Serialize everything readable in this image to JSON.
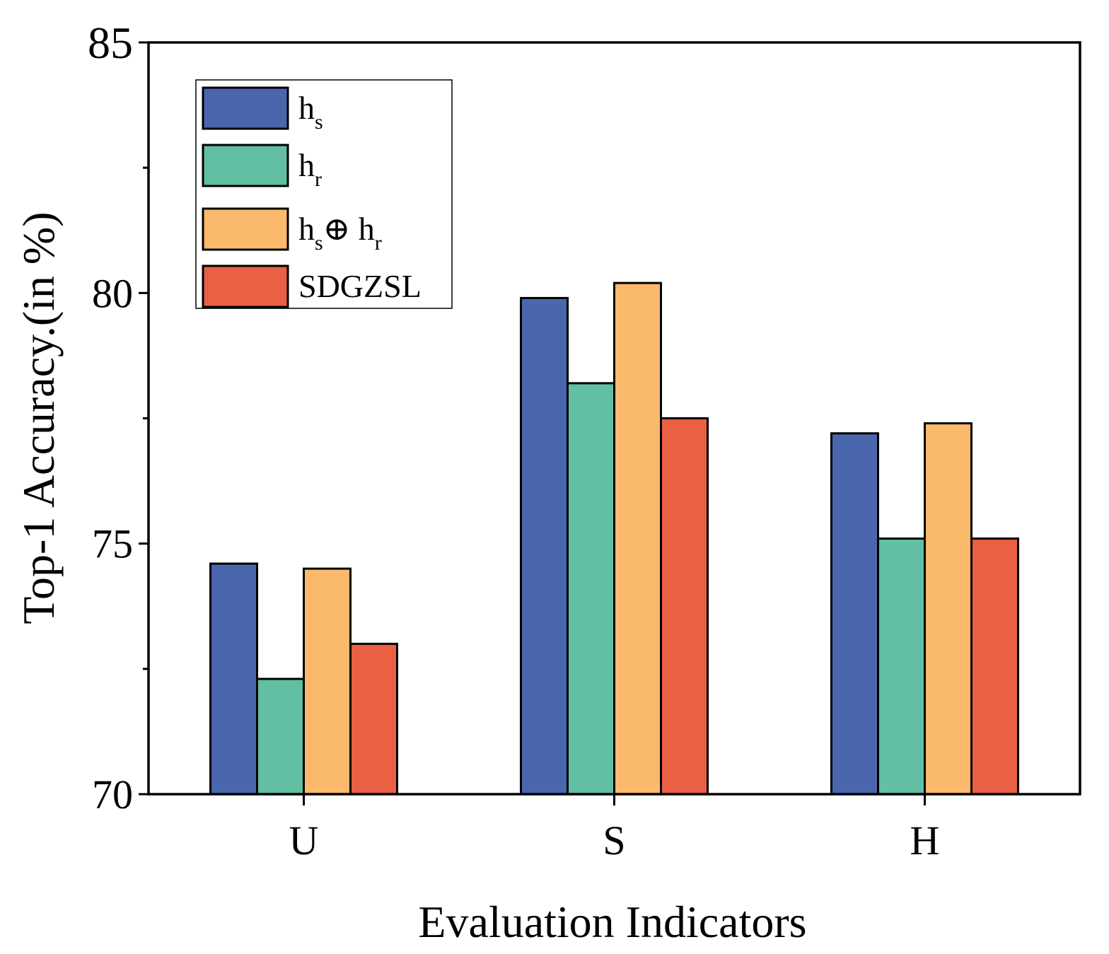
{
  "chart_data": {
    "type": "bar",
    "title": "",
    "xlabel": "Evaluation Indicators",
    "ylabel": "Top-1 Accuracy.(in %)",
    "ylim": [
      70,
      85
    ],
    "yticks": [
      "70",
      "75",
      "80",
      "85"
    ],
    "categories": [
      "U",
      "S",
      "H"
    ],
    "series": [
      {
        "name": "h_s",
        "label_base": "h",
        "label_sub": "s",
        "color": "#4a67ae",
        "values": [
          74.6,
          79.9,
          77.2
        ]
      },
      {
        "name": "h_r",
        "label_base": "h",
        "label_sub": "r",
        "color": "#62bfa3",
        "values": [
          72.3,
          78.2,
          75.1
        ]
      },
      {
        "name": "h_s⊕ h_r",
        "label_base": "h",
        "label_sub": "s",
        "label_mid": "⊕ h",
        "label_sub2": "r",
        "color": "#fbba6b",
        "values": [
          74.5,
          80.2,
          77.4
        ]
      },
      {
        "name": "SDGZSL",
        "label_base": "SDGZSL",
        "color": "#e96045",
        "values": [
          73.0,
          77.5,
          75.1
        ]
      }
    ],
    "legend_position": "top-left",
    "grid": false
  }
}
